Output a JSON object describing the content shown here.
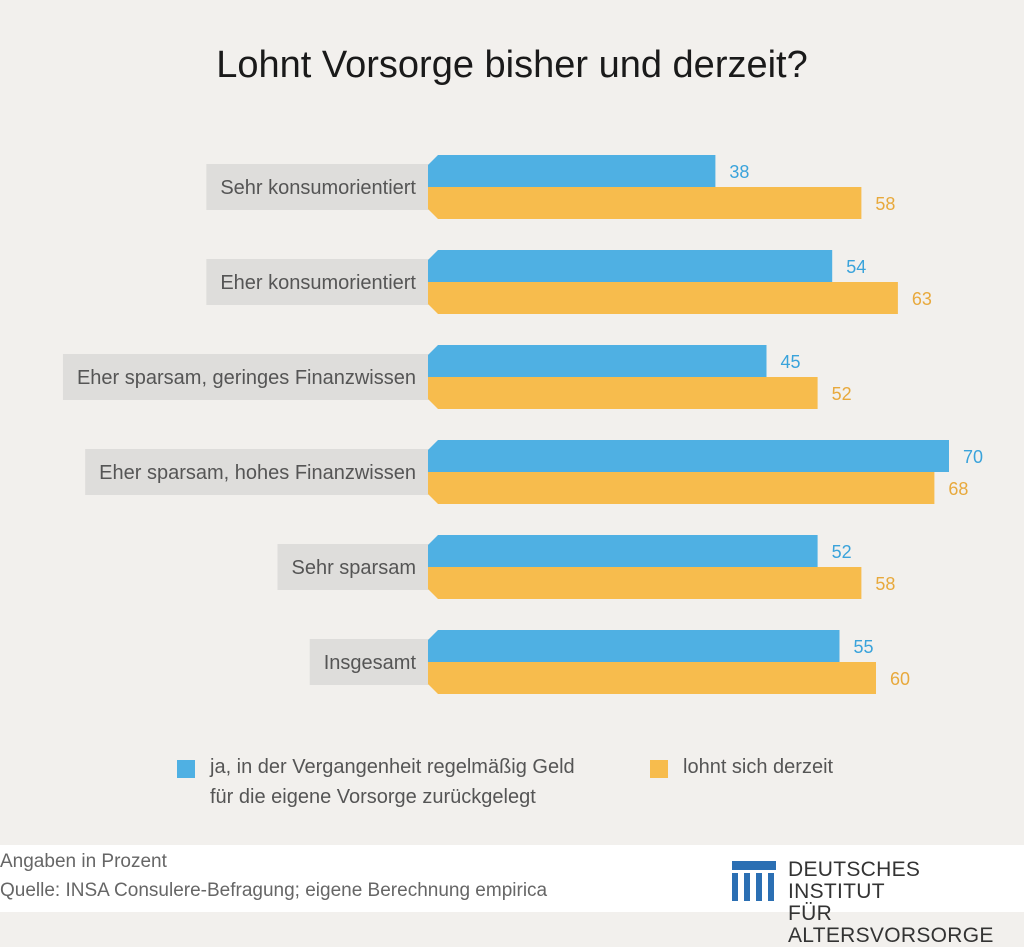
{
  "title": "Lohnt Vorsorge bisher und derzeit?",
  "colors": {
    "blue": "#4fb0e3",
    "orange": "#f7bc4d",
    "label_bg": "#dedddb",
    "blue_text": "#3aa3db",
    "orange_text": "#e8a93c"
  },
  "chart_data": {
    "type": "bar",
    "orientation": "horizontal",
    "title": "Lohnt Vorsorge bisher und derzeit?",
    "categories": [
      "Sehr konsumorientiert",
      "Eher konsumorientiert",
      "Eher sparsam, geringes Finanzwissen",
      "Eher sparsam, hohes Finanzwissen",
      "Sehr sparsam",
      "Insgesamt"
    ],
    "series": [
      {
        "name": "ja, in der Vergangenheit regelmäßig Geld für die eigene Vorsorge zurückgelegt",
        "values": [
          38,
          54,
          45,
          70,
          52,
          55
        ]
      },
      {
        "name": "lohnt sich derzeit",
        "values": [
          58,
          63,
          52,
          68,
          58,
          60
        ]
      }
    ],
    "unit": "Angaben in Prozent",
    "grid": false,
    "legend": "bottom"
  },
  "legend": {
    "blue_line1": "ja, in der Vergangenheit regelmäßig Geld",
    "blue_line2": "für die eigene Vorsorge zurückgelegt",
    "orange": "lohnt sich derzeit"
  },
  "footer": {
    "note": "Angaben in Prozent",
    "source": "Quelle: INSA Consulere-Befragung; eigene Berechnung  empirica",
    "logo_line1": "DEUTSCHES INSTITUT",
    "logo_line2": "FÜR ALTERSVORSORGE"
  }
}
